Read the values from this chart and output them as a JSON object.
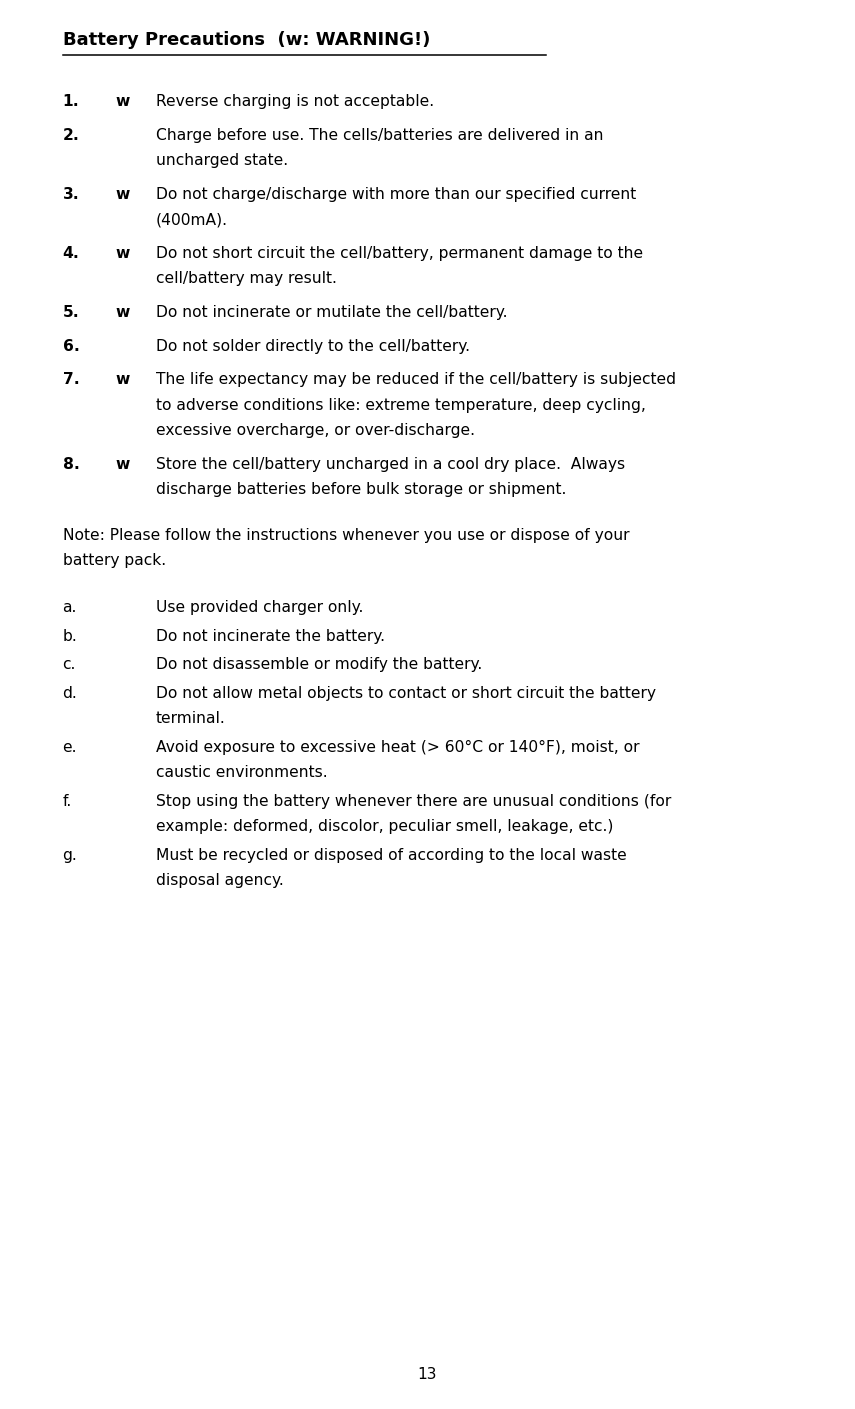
{
  "title": "Battery Precautions  (w: WARNING!)",
  "page_number": "13",
  "background_color": "#ffffff",
  "text_color": "#000000",
  "title_fontsize": 13.0,
  "body_fontsize": 11.2,
  "items": [
    {
      "label": "1.",
      "bold_suffix": "w",
      "text": "Reverse charging is not acceptable."
    },
    {
      "label": "2.",
      "bold_suffix": "",
      "text": "Charge before use. The cells/batteries are delivered in an\nuncharged state."
    },
    {
      "label": "3.",
      "bold_suffix": "w",
      "text": "Do not charge/discharge with more than our specified current\n(400mA)."
    },
    {
      "label": "4.",
      "bold_suffix": "w",
      "text": "Do not short circuit the cell/battery, permanent damage to the\ncell/battery may result."
    },
    {
      "label": "5.",
      "bold_suffix": "w",
      "text": "Do not incinerate or mutilate the cell/battery."
    },
    {
      "label": "6.",
      "bold_suffix": "",
      "text": "Do not solder directly to the cell/battery."
    },
    {
      "label": "7.",
      "bold_suffix": "w",
      "text": "The life expectancy may be reduced if the cell/battery is subjected\nto adverse conditions like: extreme temperature, deep cycling,\nexcessive overcharge, or over-discharge."
    },
    {
      "label": "8.",
      "bold_suffix": "w",
      "text": "Store the cell/battery uncharged in a cool dry place.  Always\ndischarge batteries before bulk storage or shipment."
    }
  ],
  "note_text": "Note: Please follow the instructions whenever you use or dispose of your\nbattery pack.",
  "sub_items": [
    {
      "label": "a.",
      "text": "Use provided charger only."
    },
    {
      "label": "b.",
      "text": "Do not incinerate the battery."
    },
    {
      "label": "c.",
      "text": "Do not disassemble or modify the battery."
    },
    {
      "label": "d.",
      "text": "Do not allow metal objects to contact or short circuit the battery\nterminal."
    },
    {
      "label": "e.",
      "text": "Avoid exposure to excessive heat (> 60°C or 140°F), moist, or\ncaustic environments."
    },
    {
      "label": "f.",
      "text": "Stop using the battery whenever there are unusual conditions (for\nexample: deformed, discolor, peculiar smell, leakage, etc.)"
    },
    {
      "label": "g.",
      "text": "Must be recycled or disposed of according to the local waste\ndisposal agency."
    }
  ]
}
